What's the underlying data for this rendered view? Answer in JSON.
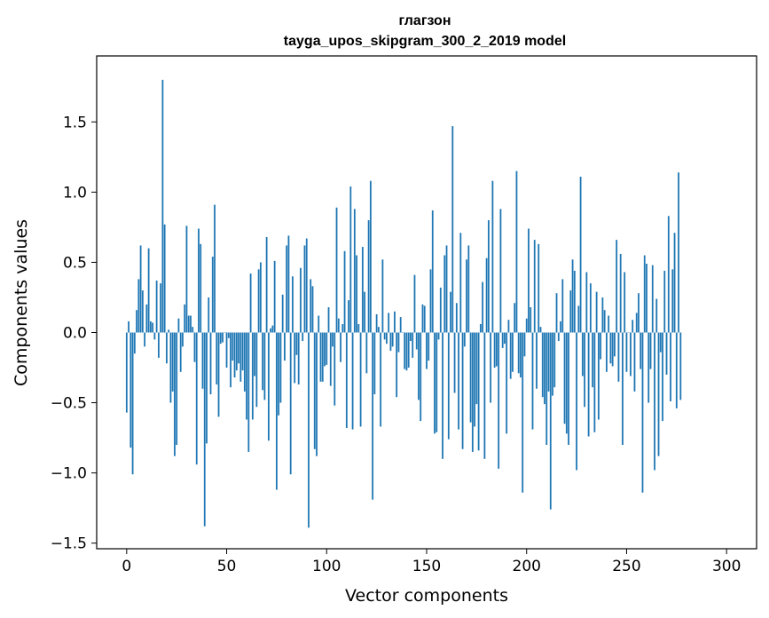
{
  "chart_data": {
    "type": "bar",
    "title": "глагзон",
    "subtitle": "tayga_upos_skipgram_300_2_2019 model",
    "xlabel": "Vector components",
    "ylabel": "Components values",
    "xlim": [
      -15,
      315
    ],
    "ylim": [
      -1.54,
      1.97
    ],
    "xticks": [
      0,
      50,
      100,
      150,
      200,
      250,
      300
    ],
    "xtick_labels": [
      "0",
      "50",
      "100",
      "150",
      "200",
      "250",
      "300"
    ],
    "yticks": [
      -1.5,
      -1.0,
      -0.5,
      0.0,
      0.5,
      1.0,
      1.5
    ],
    "ytick_labels": [
      "−1.5",
      "−1.0",
      "−0.5",
      "0.0",
      "0.5",
      "1.0",
      "1.5"
    ],
    "grid": false,
    "legend": "none",
    "bar_color": "#1f77b4",
    "values": [
      -0.57,
      0.08,
      -0.82,
      -1.01,
      -0.15,
      0.16,
      0.38,
      0.62,
      0.3,
      -0.1,
      0.2,
      0.6,
      0.08,
      0.07,
      -0.05,
      0.37,
      -0.18,
      0.35,
      1.8,
      0.77,
      -0.22,
      0.02,
      -0.5,
      -0.42,
      -0.88,
      -0.8,
      0.1,
      -0.28,
      -0.1,
      0.2,
      0.76,
      0.12,
      0.12,
      0.04,
      -0.21,
      -0.94,
      0.74,
      0.63,
      -0.4,
      -1.38,
      -0.79,
      0.25,
      -0.44,
      0.54,
      0.91,
      -0.37,
      -0.6,
      -0.08,
      -0.07,
      0.0,
      -0.25,
      -0.04,
      -0.39,
      -0.2,
      -0.32,
      -0.27,
      -0.22,
      -0.35,
      -0.27,
      -0.42,
      -0.62,
      -0.85,
      0.42,
      -0.62,
      -0.31,
      -0.53,
      0.45,
      0.5,
      -0.41,
      -0.48,
      0.68,
      -0.77,
      0.03,
      0.05,
      0.51,
      -1.12,
      -0.59,
      -0.5,
      0.27,
      -0.2,
      0.62,
      0.69,
      -1.01,
      0.4,
      -0.36,
      -0.16,
      -0.37,
      0.46,
      -0.06,
      0.62,
      0.67,
      -1.39,
      0.38,
      0.33,
      -0.83,
      -0.88,
      0.12,
      -0.35,
      -0.35,
      -0.24,
      -0.23,
      0.18,
      -0.38,
      -0.1,
      -0.52,
      0.89,
      0.1,
      -0.21,
      0.06,
      0.58,
      -0.68,
      0.23,
      1.04,
      -0.69,
      0.88,
      0.55,
      0.06,
      -0.67,
      0.61,
      0.29,
      -0.29,
      0.8,
      1.08,
      -1.19,
      -0.44,
      0.13,
      0.04,
      -0.67,
      0.52,
      -0.05,
      -0.08,
      0.14,
      -0.13,
      -0.1,
      0.15,
      -0.46,
      -0.14,
      0.11,
      0.0,
      -0.26,
      -0.27,
      -0.25,
      -0.06,
      -0.18,
      0.41,
      -0.12,
      -0.48,
      -0.63,
      0.2,
      0.19,
      -0.26,
      -0.2,
      0.45,
      0.87,
      -0.72,
      -0.71,
      -0.05,
      0.32,
      -0.9,
      0.55,
      0.62,
      -0.76,
      0.29,
      1.47,
      -0.43,
      0.21,
      -0.69,
      0.71,
      -0.83,
      -0.1,
      0.52,
      0.62,
      -0.64,
      -0.85,
      -0.67,
      -0.51,
      -0.84,
      0.06,
      0.36,
      -0.9,
      0.53,
      0.8,
      -0.5,
      1.08,
      -0.25,
      -0.24,
      -0.97,
      0.88,
      -0.11,
      -0.08,
      -0.72,
      0.09,
      -0.33,
      -0.28,
      0.21,
      1.15,
      -0.29,
      -0.32,
      -1.14,
      -0.17,
      0.1,
      0.74,
      0.18,
      -0.69,
      0.66,
      -0.4,
      0.63,
      0.04,
      -0.46,
      -0.51,
      -0.8,
      -0.42,
      -1.26,
      -0.45,
      -0.39,
      0.28,
      -0.06,
      0.08,
      0.38,
      -0.65,
      -0.72,
      -0.8,
      0.3,
      0.52,
      0.44,
      -0.98,
      0.19,
      1.11,
      -0.31,
      -0.53,
      0.43,
      -0.74,
      0.35,
      -0.39,
      -0.71,
      0.29,
      -0.62,
      -0.19,
      0.25,
      0.16,
      -0.28,
      0.12,
      -0.22,
      -0.24,
      -0.17,
      0.66,
      -0.35,
      0.56,
      -0.8,
      0.43,
      -0.28,
      0.0,
      -0.31,
      0.09,
      -0.42,
      0.14,
      0.28,
      -0.26,
      -1.14,
      0.55,
      0.49,
      -0.5,
      -0.26,
      0.48,
      -0.98,
      0.24,
      -0.88,
      -0.14,
      -0.63,
      0.44,
      -0.3,
      0.83,
      -0.49,
      0.45,
      0.71,
      -0.54,
      1.14,
      -0.48
    ]
  }
}
